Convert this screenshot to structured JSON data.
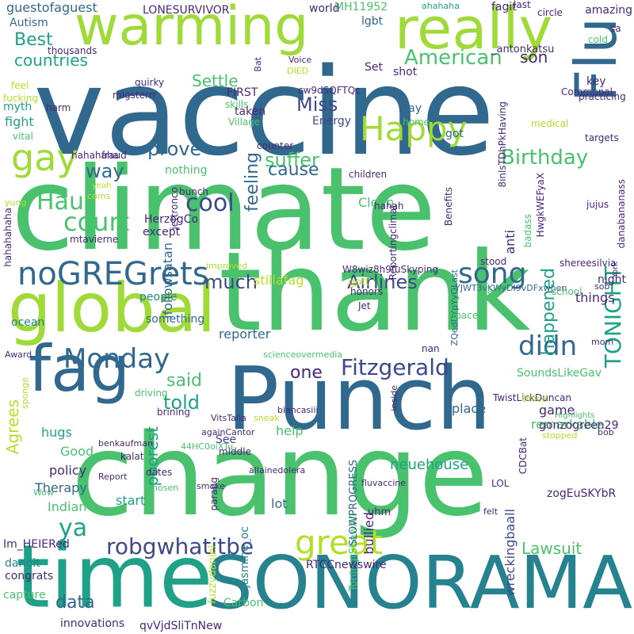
{
  "palette": {
    "yellow": "#b5de2b",
    "lime": "#a0da39",
    "green": "#4ac16d",
    "teal": "#1fa187",
    "cyan": "#26828e",
    "blue": "#31688e",
    "indigo": "#3e4989",
    "purple": "#482878",
    "dark": "#440154"
  },
  "words": [
    {
      "text": "vaccine",
      "color": "blue"
    },
    {
      "text": "climate",
      "color": "green"
    },
    {
      "text": "thank",
      "color": "green"
    },
    {
      "text": "change",
      "color": "green"
    },
    {
      "text": "Punch",
      "color": "blue"
    },
    {
      "text": "warming",
      "color": "lime"
    },
    {
      "text": "time",
      "color": "teal"
    },
    {
      "text": "SONORAMA",
      "color": "cyan"
    },
    {
      "text": "global",
      "color": "lime"
    },
    {
      "text": "fag",
      "color": "blue"
    },
    {
      "text": "really",
      "color": "lime"
    },
    {
      "text": "Flu",
      "color": "blue"
    },
    {
      "text": "gay",
      "color": "lime"
    },
    {
      "text": "Happy",
      "color": "lime"
    },
    {
      "text": "noGREGrets",
      "color": "blue"
    },
    {
      "text": "great",
      "color": "yellow"
    },
    {
      "text": "Monday",
      "color": "blue"
    },
    {
      "text": "song",
      "color": "blue"
    },
    {
      "text": "didn",
      "color": "blue"
    },
    {
      "text": "court",
      "color": "green"
    },
    {
      "text": "Haus",
      "color": "green"
    },
    {
      "text": "cool",
      "color": "indigo"
    },
    {
      "text": "ya",
      "color": "teal"
    },
    {
      "text": "robgwhatitbe",
      "color": "indigo"
    },
    {
      "text": "Fitzgerald",
      "color": "indigo"
    },
    {
      "text": "American",
      "color": "green"
    },
    {
      "text": "Birthday",
      "color": "green"
    },
    {
      "text": "TONIGHT",
      "color": "teal"
    },
    {
      "text": "Airlines",
      "color": "indigo"
    },
    {
      "text": "prove",
      "color": "blue"
    },
    {
      "text": "way",
      "color": "blue"
    },
    {
      "text": "suffer",
      "color": "green"
    },
    {
      "text": "Miss",
      "color": "indigo"
    },
    {
      "text": "much",
      "color": "indigo"
    },
    {
      "text": "told",
      "color": "teal"
    },
    {
      "text": "said",
      "color": "green"
    },
    {
      "text": "data",
      "color": "blue"
    },
    {
      "text": "one",
      "color": "purple"
    },
    {
      "text": "feeling",
      "color": "blue"
    },
    {
      "text": "cause",
      "color": "blue"
    },
    {
      "text": "happened",
      "color": "teal"
    },
    {
      "text": "Lawsuit",
      "color": "green"
    },
    {
      "text": "poorest",
      "color": "teal"
    },
    {
      "text": "Agrees",
      "color": "yellow"
    },
    {
      "text": "Best",
      "color": "teal"
    },
    {
      "text": "countries",
      "color": "teal"
    },
    {
      "text": "Settle",
      "color": "green"
    },
    {
      "text": "son",
      "color": "purple"
    },
    {
      "text": "guestofaguest",
      "color": "blue"
    },
    {
      "text": "Autism",
      "color": "blue"
    },
    {
      "text": "LONESURVIVOR",
      "color": "purple"
    },
    {
      "text": "MH11952",
      "color": "green"
    },
    {
      "text": "world",
      "color": "purple"
    },
    {
      "text": "lgbt",
      "color": "blue"
    },
    {
      "text": "shot",
      "color": "purple"
    },
    {
      "text": "neuehouse",
      "color": "teal"
    },
    {
      "text": "ifollowsatan",
      "color": "blue"
    },
    {
      "text": "reporter",
      "color": "blue"
    },
    {
      "text": "stillafag",
      "color": "yellow"
    },
    {
      "text": "Therapy",
      "color": "blue"
    },
    {
      "text": "Indian",
      "color": "green"
    },
    {
      "text": "policy",
      "color": "purple"
    },
    {
      "text": "Good",
      "color": "green"
    },
    {
      "text": "hugs",
      "color": "teal"
    },
    {
      "text": "start",
      "color": "teal"
    },
    {
      "text": "lot",
      "color": "blue"
    },
    {
      "text": "bullied",
      "color": "purple"
    },
    {
      "text": "wreckingbaall",
      "color": "indigo"
    },
    {
      "text": "help",
      "color": "green"
    },
    {
      "text": "See",
      "color": "indigo"
    },
    {
      "text": "things",
      "color": "purple"
    },
    {
      "text": "anti",
      "color": "purple"
    },
    {
      "text": "Clean",
      "color": "green"
    },
    {
      "text": "remarkable",
      "color": "green"
    },
    {
      "text": "game",
      "color": "purple"
    },
    {
      "text": "place",
      "color": "blue"
    },
    {
      "text": "fight",
      "color": "teal"
    },
    {
      "text": "Energy",
      "color": "indigo"
    },
    {
      "text": "say",
      "color": "blue"
    },
    {
      "text": "got",
      "color": "blue"
    },
    {
      "text": "people",
      "color": "cyan"
    },
    {
      "text": "something",
      "color": "blue"
    },
    {
      "text": "nothing",
      "color": "green"
    },
    {
      "text": "ocean",
      "color": "cyan"
    },
    {
      "text": "FIRST",
      "color": "purple"
    },
    {
      "text": "key",
      "color": "purple"
    },
    {
      "text": "HerzogCo",
      "color": "purple"
    },
    {
      "text": "except",
      "color": "purple"
    },
    {
      "text": "night",
      "color": "purple"
    },
    {
      "text": "myth",
      "color": "teal"
    },
    {
      "text": "jasmine_oc",
      "color": "cyan"
    },
    {
      "text": "fuzzydaniel",
      "color": "yellow"
    },
    {
      "text": "ToningtShowAll",
      "color": "green"
    },
    {
      "text": "SLOWPROGRESS",
      "color": "blue"
    },
    {
      "text": "SoundsLikeGav",
      "color": "green"
    },
    {
      "text": "gonzogreen29",
      "color": "purple"
    },
    {
      "text": "zogEuSKYbR",
      "color": "purple"
    },
    {
      "text": "Im_HEIERed",
      "color": "purple"
    },
    {
      "text": "dangit",
      "color": "cyan"
    },
    {
      "text": "congrats",
      "color": "purple"
    },
    {
      "text": "capture",
      "color": "green"
    },
    {
      "text": "RTCCnewswire",
      "color": "purple"
    },
    {
      "text": "Carbon",
      "color": "green"
    },
    {
      "text": "innovations",
      "color": "purple"
    },
    {
      "text": "qvVjdSliTnNew",
      "color": "purple"
    },
    {
      "text": "amazing",
      "color": "purple"
    },
    {
      "text": "fagit",
      "color": "purple"
    },
    {
      "text": "ahahaha",
      "color": "teal"
    },
    {
      "text": "last",
      "color": "purple"
    },
    {
      "text": "circle",
      "color": "purple"
    },
    {
      "text": "cold",
      "color": "green"
    },
    {
      "text": "sa",
      "color": "purple"
    },
    {
      "text": "_antonkatsu",
      "color": "purple"
    },
    {
      "text": "thousands",
      "color": "purple"
    },
    {
      "text": "quirky",
      "color": "purple"
    },
    {
      "text": "Bat",
      "color": "purple"
    },
    {
      "text": "Voice",
      "color": "purple"
    },
    {
      "text": "DIED",
      "color": "yellow"
    },
    {
      "text": "Set",
      "color": "purple"
    },
    {
      "text": "Communal",
      "color": "purple"
    },
    {
      "text": "harm",
      "color": "purple"
    },
    {
      "text": "feel",
      "color": "yellow"
    },
    {
      "text": "fucking",
      "color": "yellow"
    },
    {
      "text": "migsterrr",
      "color": "purple"
    },
    {
      "text": "cw9dSQFTQc",
      "color": "purple"
    },
    {
      "text": "practicing",
      "color": "purple"
    },
    {
      "text": "skills",
      "color": "green"
    },
    {
      "text": "taken",
      "color": "purple"
    },
    {
      "text": "Village",
      "color": "green"
    },
    {
      "text": "home",
      "color": "green"
    },
    {
      "text": "medical",
      "color": "yellow"
    },
    {
      "text": "vital",
      "color": "green"
    },
    {
      "text": "fraud",
      "color": "purple"
    },
    {
      "text": "hahahaha",
      "color": "purple"
    },
    {
      "text": "yeah",
      "color": "yellow"
    },
    {
      "text": "coms",
      "color": "yellow"
    },
    {
      "text": "yung",
      "color": "yellow"
    },
    {
      "text": "counter",
      "color": "purple"
    },
    {
      "text": "targets",
      "color": "purple"
    },
    {
      "text": "8inlsTDhPkHaving",
      "color": "purple"
    },
    {
      "text": "jettronco",
      "color": "purple"
    },
    {
      "text": "children",
      "color": "purple"
    },
    {
      "text": "bunch",
      "color": "purple"
    },
    {
      "text": "jujus",
      "color": "purple"
    },
    {
      "text": "HwgkWEFyaX",
      "color": "purple"
    },
    {
      "text": "Benefits",
      "color": "purple"
    },
    {
      "text": "hahah",
      "color": "purple"
    },
    {
      "text": "badass",
      "color": "green"
    },
    {
      "text": "mtavierne",
      "color": "purple"
    },
    {
      "text": "danabananass",
      "color": "purple"
    },
    {
      "text": "stood",
      "color": "purple"
    },
    {
      "text": "shereesilvia",
      "color": "purple"
    },
    {
      "text": "school",
      "color": "green"
    },
    {
      "text": "improved",
      "color": "yellow"
    },
    {
      "text": "gott",
      "color": "yellow"
    },
    {
      "text": "W8wiz8h9fuSkyping",
      "color": "purple"
    },
    {
      "text": "ZQedDYpYyOLast",
      "color": "blue"
    },
    {
      "text": "hahahahaha",
      "color": "purple"
    },
    {
      "text": "Reportingclimat",
      "color": "purple"
    },
    {
      "text": "YJWT3vKWyDI9vDFxwhen",
      "color": "blue"
    },
    {
      "text": "honors",
      "color": "purple"
    },
    {
      "text": "York",
      "color": "purple"
    },
    {
      "text": "space",
      "color": "green"
    },
    {
      "text": "bawi",
      "color": "green"
    },
    {
      "text": "Jet",
      "color": "purple"
    },
    {
      "text": "sob",
      "color": "purple"
    },
    {
      "text": "mom",
      "color": "purple"
    },
    {
      "text": "scienceovermedia",
      "color": "green"
    },
    {
      "text": "inside",
      "color": "purple"
    },
    {
      "text": "Award",
      "color": "purple"
    },
    {
      "text": "TwistLickDuncan",
      "color": "purple"
    },
    {
      "text": "nan",
      "color": "purple"
    },
    {
      "text": "driving",
      "color": "green"
    },
    {
      "text": "sneak",
      "color": "yellow"
    },
    {
      "text": "brining",
      "color": "purple"
    },
    {
      "text": "Office",
      "color": "yellow"
    },
    {
      "text": "bob",
      "color": "purple"
    },
    {
      "text": "biancasiii",
      "color": "purple"
    },
    {
      "text": "CDCBat",
      "color": "purple"
    },
    {
      "text": "Highlights",
      "color": "green"
    },
    {
      "text": "parang",
      "color": "purple"
    },
    {
      "text": "sponge",
      "color": "yellow"
    },
    {
      "text": "againCantor",
      "color": "purple"
    },
    {
      "text": "VitsTalla",
      "color": "purple"
    },
    {
      "text": "benkaufman",
      "color": "purple"
    },
    {
      "text": "stopped",
      "color": "yellow"
    },
    {
      "text": "middle",
      "color": "purple"
    },
    {
      "text": "Report",
      "color": "purple"
    },
    {
      "text": "Wow",
      "color": "green"
    },
    {
      "text": "dates",
      "color": "purple"
    },
    {
      "text": "LOL",
      "color": "purple"
    },
    {
      "text": "kalat",
      "color": "purple"
    },
    {
      "text": "44HC0oiXTu",
      "color": "green"
    },
    {
      "text": "smoke",
      "color": "purple"
    },
    {
      "text": "allainedolera",
      "color": "purple"
    },
    {
      "text": "chosen",
      "color": "green"
    },
    {
      "text": "fluvaccine",
      "color": "purple"
    },
    {
      "text": "uhm",
      "color": "purple"
    },
    {
      "text": "felt",
      "color": "purple"
    }
  ]
}
